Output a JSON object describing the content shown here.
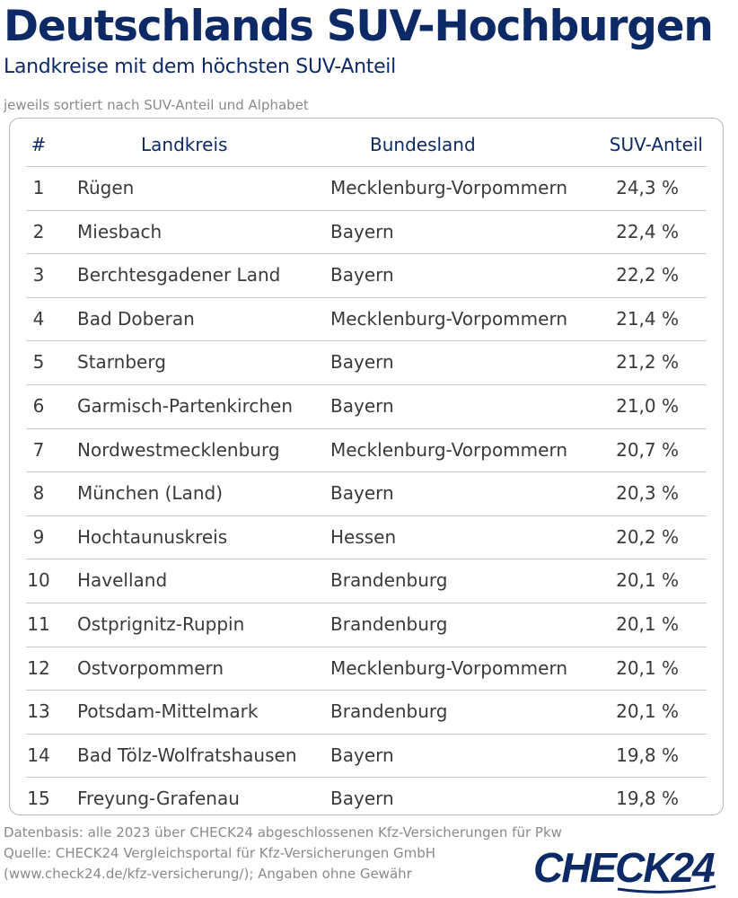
{
  "header": {
    "title": "Deutschlands SUV-Hochburgen",
    "subtitle": "Landkreise mit dem höchsten SUV-Anteil",
    "note": "jeweils sortiert nach SUV-Anteil und Alphabet"
  },
  "chart_data": {
    "type": "table",
    "columns": [
      "#",
      "Landkreis",
      "Bundesland",
      "SUV-Anteil"
    ],
    "rows": [
      {
        "rank": "1",
        "landkreis": "Rügen",
        "bundesland": "Mecklenburg-Vorpommern",
        "anteil": "24,3 %",
        "value": 24.3
      },
      {
        "rank": "2",
        "landkreis": "Miesbach",
        "bundesland": "Bayern",
        "anteil": "22,4 %",
        "value": 22.4
      },
      {
        "rank": "3",
        "landkreis": "Berchtesgadener Land",
        "bundesland": "Bayern",
        "anteil": "22,2 %",
        "value": 22.2
      },
      {
        "rank": "4",
        "landkreis": "Bad Doberan",
        "bundesland": "Mecklenburg-Vorpommern",
        "anteil": "21,4 %",
        "value": 21.4
      },
      {
        "rank": "5",
        "landkreis": "Starnberg",
        "bundesland": "Bayern",
        "anteil": "21,2 %",
        "value": 21.2
      },
      {
        "rank": "6",
        "landkreis": "Garmisch-Partenkirchen",
        "bundesland": "Bayern",
        "anteil": "21,0 %",
        "value": 21.0
      },
      {
        "rank": "7",
        "landkreis": "Nordwestmecklenburg",
        "bundesland": "Mecklenburg-Vorpommern",
        "anteil": "20,7 %",
        "value": 20.7
      },
      {
        "rank": "8",
        "landkreis": "München (Land)",
        "bundesland": "Bayern",
        "anteil": "20,3 %",
        "value": 20.3
      },
      {
        "rank": "9",
        "landkreis": "Hochtaunuskreis",
        "bundesland": "Hessen",
        "anteil": "20,2 %",
        "value": 20.2
      },
      {
        "rank": "10",
        "landkreis": "Havelland",
        "bundesland": "Brandenburg",
        "anteil": "20,1 %",
        "value": 20.1
      },
      {
        "rank": "11",
        "landkreis": "Ostprignitz-Ruppin",
        "bundesland": "Brandenburg",
        "anteil": "20,1 %",
        "value": 20.1
      },
      {
        "rank": "12",
        "landkreis": "Ostvorpommern",
        "bundesland": "Mecklenburg-Vorpommern",
        "anteil": "20,1 %",
        "value": 20.1
      },
      {
        "rank": "13",
        "landkreis": "Potsdam-Mittelmark",
        "bundesland": "Brandenburg",
        "anteil": "20,1 %",
        "value": 20.1
      },
      {
        "rank": "14",
        "landkreis": "Bad Tölz-Wolfratshausen",
        "bundesland": "Bayern",
        "anteil": "19,8 %",
        "value": 19.8
      },
      {
        "rank": "15",
        "landkreis": "Freyung-Grafenau",
        "bundesland": "Bayern",
        "anteil": "19,8 %",
        "value": 19.8
      }
    ]
  },
  "footer": {
    "line1": "Datenbasis: alle 2023 über CHECK24 abgeschlossenen Kfz-Versicherungen für Pkw",
    "line2": "Quelle: CHECK24 Vergleichsportal für Kfz-Versicherungen GmbH",
    "line3": "(www.check24.de/kfz-versicherung/); Angaben ohne Gewähr"
  },
  "logo": {
    "text": "CHECK24",
    "color": "#0d2a66"
  },
  "colors": {
    "title": "#0d2a66",
    "body_text": "#3a3a3a",
    "muted": "#8a8a8a",
    "grid": "#c9c9c9"
  }
}
